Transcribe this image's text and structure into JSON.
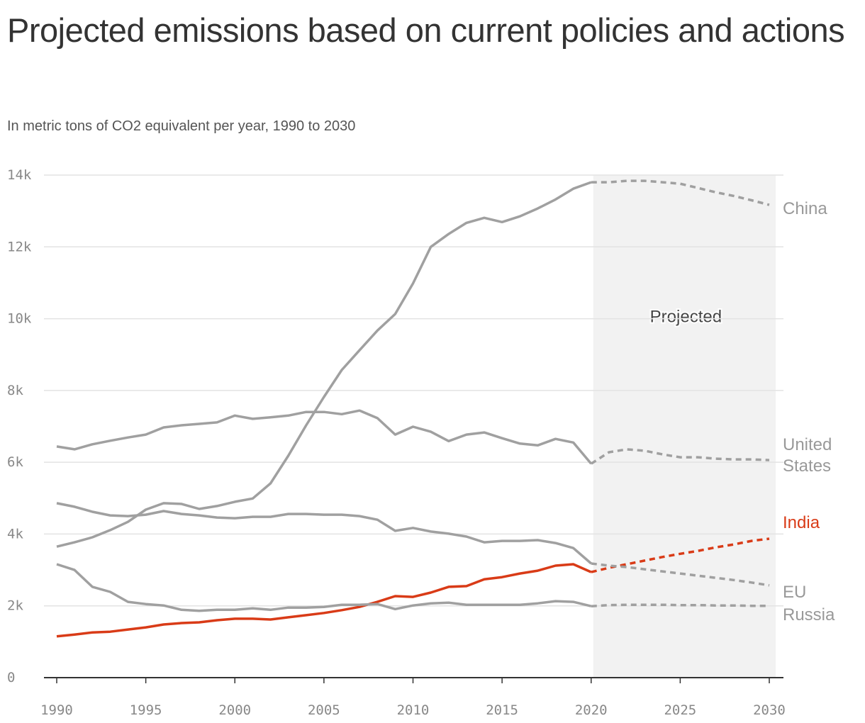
{
  "chart_data": {
    "type": "line",
    "title": "Projected emissions based on current policies and actions",
    "subtitle": "In metric tons of CO2 equivalent per year, 1990 to 2030",
    "xlabel": "",
    "ylabel": "",
    "xlim": [
      1990,
      2030
    ],
    "ylim": [
      0,
      14000
    ],
    "grid": true,
    "x_ticks": [
      "1990",
      "1995",
      "2000",
      "2005",
      "2010",
      "2015",
      "2020",
      "2025",
      "2030"
    ],
    "y_ticks": [
      "0",
      "2k",
      "4k",
      "6k",
      "8k",
      "10k",
      "12k",
      "14k"
    ],
    "projected_region": {
      "label": "Projected",
      "start": 2020,
      "end": 2030
    },
    "projection_start": 2020,
    "colors": {
      "highlight": "#d93b17",
      "other": "#a0a0a0",
      "projected_fill": "#f2f2f2"
    },
    "x": [
      1990,
      1991,
      1992,
      1993,
      1994,
      1995,
      1996,
      1997,
      1998,
      1999,
      2000,
      2001,
      2002,
      2003,
      2004,
      2005,
      2006,
      2007,
      2008,
      2009,
      2010,
      2011,
      2012,
      2013,
      2014,
      2015,
      2016,
      2017,
      2018,
      2019,
      2020,
      2021,
      2022,
      2023,
      2024,
      2025,
      2026,
      2027,
      2028,
      2029,
      2030
    ],
    "series": [
      {
        "name": "China",
        "label_lines": [
          "China"
        ],
        "highlight": false,
        "values": [
          3650,
          3770,
          3910,
          4110,
          4340,
          4680,
          4860,
          4840,
          4700,
          4780,
          4900,
          4990,
          5410,
          6180,
          7030,
          7820,
          8570,
          9120,
          9670,
          10130,
          10980,
          12000,
          12360,
          12670,
          12810,
          12690,
          12850,
          13070,
          13320,
          13620,
          13800,
          13800,
          13840,
          13840,
          13800,
          13760,
          13640,
          13520,
          13420,
          13300,
          13170
        ]
      },
      {
        "name": "United States",
        "label_lines": [
          "United",
          "States"
        ],
        "highlight": false,
        "values": [
          6440,
          6360,
          6500,
          6600,
          6690,
          6770,
          6970,
          7030,
          7070,
          7110,
          7300,
          7210,
          7250,
          7300,
          7400,
          7400,
          7340,
          7440,
          7230,
          6770,
          6990,
          6850,
          6590,
          6770,
          6830,
          6670,
          6520,
          6470,
          6650,
          6550,
          5960,
          6280,
          6360,
          6320,
          6220,
          6140,
          6140,
          6100,
          6080,
          6080,
          6060
        ]
      },
      {
        "name": "India",
        "label_lines": [
          "India"
        ],
        "highlight": true,
        "values": [
          1150,
          1200,
          1260,
          1280,
          1340,
          1400,
          1480,
          1520,
          1540,
          1600,
          1640,
          1640,
          1620,
          1680,
          1740,
          1800,
          1880,
          1970,
          2110,
          2270,
          2250,
          2370,
          2530,
          2550,
          2740,
          2800,
          2900,
          2980,
          3120,
          3160,
          2940,
          3060,
          3160,
          3260,
          3360,
          3450,
          3530,
          3630,
          3710,
          3810,
          3870
        ]
      },
      {
        "name": "EU",
        "label_lines": [
          "EU"
        ],
        "highlight": false,
        "values": [
          4860,
          4760,
          4620,
          4520,
          4500,
          4540,
          4640,
          4560,
          4520,
          4460,
          4440,
          4480,
          4480,
          4560,
          4560,
          4540,
          4540,
          4500,
          4400,
          4090,
          4170,
          4070,
          4010,
          3930,
          3770,
          3810,
          3810,
          3830,
          3750,
          3610,
          3180,
          3120,
          3080,
          3020,
          2960,
          2900,
          2840,
          2780,
          2720,
          2650,
          2570
        ]
      },
      {
        "name": "Russia",
        "label_lines": [
          "Russia"
        ],
        "highlight": false,
        "values": [
          3160,
          3000,
          2530,
          2390,
          2110,
          2050,
          2010,
          1890,
          1860,
          1890,
          1890,
          1930,
          1890,
          1950,
          1950,
          1970,
          2030,
          2030,
          2050,
          1910,
          2010,
          2070,
          2090,
          2030,
          2030,
          2030,
          2030,
          2070,
          2130,
          2110,
          1990,
          2020,
          2030,
          2030,
          2030,
          2020,
          2020,
          2010,
          2010,
          2000,
          2000
        ]
      }
    ]
  }
}
